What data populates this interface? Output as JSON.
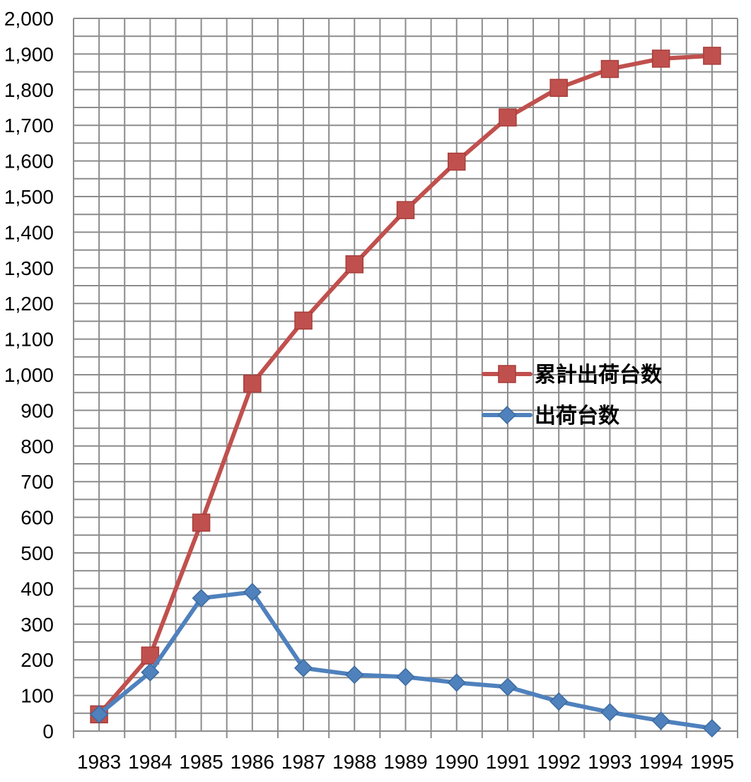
{
  "chart_data": {
    "type": "line",
    "title": "",
    "xlabel": "",
    "ylabel": "",
    "categories": [
      "1983",
      "1984",
      "1985",
      "1986",
      "1987",
      "1988",
      "1989",
      "1990",
      "1991",
      "1992",
      "1993",
      "1994",
      "1995"
    ],
    "ylim": [
      0,
      2000
    ],
    "y_ticks": [
      "0",
      "100",
      "200",
      "300",
      "400",
      "500",
      "600",
      "700",
      "800",
      "900",
      "1,000",
      "1,100",
      "1,200",
      "1,300",
      "1,400",
      "1,500",
      "1,600",
      "1,700",
      "1,800",
      "1,900",
      "2,000"
    ],
    "grid": true,
    "legend_position": "right-middle",
    "series": [
      {
        "name": "累計出荷台数",
        "marker": "square",
        "color": "#c0504d",
        "values": [
          47,
          212,
          585,
          975,
          1152,
          1310,
          1462,
          1598,
          1722,
          1805,
          1858,
          1887,
          1895
        ]
      },
      {
        "name": "出荷台数",
        "marker": "diamond",
        "color": "#4f81bd",
        "values": [
          47,
          165,
          373,
          390,
          177,
          158,
          152,
          136,
          124,
          83,
          53,
          29,
          8
        ]
      }
    ]
  }
}
